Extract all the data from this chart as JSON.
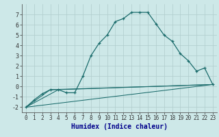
{
  "title": "",
  "xlabel": "Humidex (Indice chaleur)",
  "background_color": "#cde8e8",
  "grid_color": "#b0cccc",
  "line_color": "#1a6b6b",
  "xlim": [
    -0.5,
    23.5
  ],
  "ylim": [
    -2.5,
    8.0
  ],
  "yticks": [
    -2,
    -1,
    0,
    1,
    2,
    3,
    4,
    5,
    6,
    7
  ],
  "xticks": [
    0,
    1,
    2,
    3,
    4,
    5,
    6,
    7,
    8,
    9,
    10,
    11,
    12,
    13,
    14,
    15,
    16,
    17,
    18,
    19,
    20,
    21,
    22,
    23
  ],
  "series0": {
    "x": [
      0,
      1,
      2,
      3,
      4,
      5,
      6,
      7,
      8,
      9,
      10,
      11,
      12,
      13,
      14,
      15,
      16,
      17,
      18,
      19,
      20,
      21,
      22,
      23
    ],
    "y": [
      -2.0,
      -1.3,
      -0.7,
      -0.3,
      -0.3,
      -0.6,
      -0.6,
      1.0,
      3.0,
      4.2,
      5.0,
      6.3,
      6.6,
      7.2,
      7.2,
      7.2,
      6.1,
      5.0,
      4.4,
      3.2,
      2.5,
      1.5,
      1.8,
      0.2
    ]
  },
  "ref_lines": [
    {
      "x": [
        0,
        23
      ],
      "y": [
        -2.0,
        0.2
      ]
    },
    {
      "x": [
        0,
        4,
        23
      ],
      "y": [
        -2.0,
        -0.3,
        0.2
      ]
    },
    {
      "x": [
        0,
        3,
        23
      ],
      "y": [
        -2.0,
        -0.3,
        0.2
      ]
    }
  ],
  "xlabel_color": "#00008b",
  "xlabel_fontsize": 7,
  "tick_fontsize": 6,
  "tick_color": "#333333",
  "spine_color": "#555555"
}
